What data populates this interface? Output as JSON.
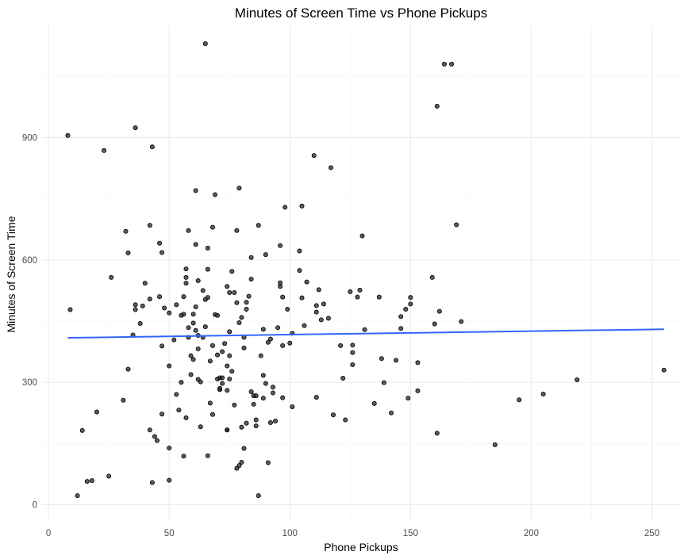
{
  "chart_data": {
    "type": "scatter",
    "title": "Minutes of Screen Time vs Phone Pickups",
    "xlabel": "Phone Pickups",
    "ylabel": "Minutes of Screen Time",
    "xlim": [
      -3,
      262
    ],
    "ylim": [
      -38,
      1175
    ],
    "x_ticks": [
      0,
      50,
      100,
      150,
      200,
      250
    ],
    "y_ticks": [
      0,
      300,
      600,
      900
    ],
    "grid": true,
    "trend_line": {
      "x": [
        8,
        255
      ],
      "y": [
        409,
        430
      ],
      "color": "#3366ff"
    },
    "point_color": "#262626",
    "points": [
      [
        8,
        905
      ],
      [
        9,
        478
      ],
      [
        12,
        22
      ],
      [
        14,
        182
      ],
      [
        16,
        57
      ],
      [
        18,
        59
      ],
      [
        20,
        227
      ],
      [
        23,
        868
      ],
      [
        25,
        70
      ],
      [
        26,
        557
      ],
      [
        31,
        256
      ],
      [
        32,
        670
      ],
      [
        33,
        332
      ],
      [
        33,
        617
      ],
      [
        35,
        416
      ],
      [
        36,
        478
      ],
      [
        36,
        490
      ],
      [
        36,
        924
      ],
      [
        38,
        444
      ],
      [
        39,
        487
      ],
      [
        40,
        543
      ],
      [
        42,
        183
      ],
      [
        42,
        504
      ],
      [
        42,
        685
      ],
      [
        43,
        877
      ],
      [
        43,
        54
      ],
      [
        44,
        167
      ],
      [
        45,
        157
      ],
      [
        46,
        510
      ],
      [
        46,
        641
      ],
      [
        47,
        618
      ],
      [
        47,
        222
      ],
      [
        47,
        389
      ],
      [
        48,
        482
      ],
      [
        50,
        340
      ],
      [
        50,
        139
      ],
      [
        50,
        60
      ],
      [
        50,
        470
      ],
      [
        52,
        404
      ],
      [
        53,
        490
      ],
      [
        53,
        270
      ],
      [
        54,
        232
      ],
      [
        55,
        464
      ],
      [
        55,
        300
      ],
      [
        56,
        467
      ],
      [
        56,
        510
      ],
      [
        56,
        119
      ],
      [
        57,
        543
      ],
      [
        57,
        557
      ],
      [
        57,
        578
      ],
      [
        57,
        213
      ],
      [
        58,
        434
      ],
      [
        58,
        410
      ],
      [
        58,
        672
      ],
      [
        59,
        365
      ],
      [
        59,
        319
      ],
      [
        60,
        445
      ],
      [
        60,
        467
      ],
      [
        60,
        356
      ],
      [
        61,
        485
      ],
      [
        61,
        638
      ],
      [
        61,
        770
      ],
      [
        61,
        427
      ],
      [
        62,
        382
      ],
      [
        62,
        549
      ],
      [
        62,
        415
      ],
      [
        62,
        307
      ],
      [
        63,
        191
      ],
      [
        63,
        301
      ],
      [
        64,
        525
      ],
      [
        64,
        410
      ],
      [
        65,
        1130
      ],
      [
        65,
        436
      ],
      [
        65,
        503
      ],
      [
        66,
        120
      ],
      [
        66,
        508
      ],
      [
        66,
        577
      ],
      [
        66,
        629
      ],
      [
        67,
        249
      ],
      [
        67,
        352
      ],
      [
        68,
        680
      ],
      [
        68,
        390
      ],
      [
        68,
        221
      ],
      [
        69,
        466
      ],
      [
        69,
        760
      ],
      [
        70,
        464
      ],
      [
        70,
        367
      ],
      [
        70,
        308
      ],
      [
        71,
        282
      ],
      [
        71,
        285
      ],
      [
        71,
        311
      ],
      [
        72,
        311
      ],
      [
        72,
        297
      ],
      [
        72,
        375
      ],
      [
        73,
        395
      ],
      [
        74,
        183
      ],
      [
        74,
        280
      ],
      [
        74,
        340
      ],
      [
        74,
        183
      ],
      [
        74,
        535
      ],
      [
        75,
        520
      ],
      [
        75,
        424
      ],
      [
        75,
        365
      ],
      [
        75,
        308
      ],
      [
        76,
        572
      ],
      [
        76,
        327
      ],
      [
        77,
        520
      ],
      [
        77,
        244
      ],
      [
        78,
        89
      ],
      [
        78,
        672
      ],
      [
        78,
        495
      ],
      [
        79,
        96
      ],
      [
        79,
        776
      ],
      [
        79,
        446
      ],
      [
        80,
        104
      ],
      [
        80,
        459
      ],
      [
        80,
        190
      ],
      [
        81,
        138
      ],
      [
        81,
        384
      ],
      [
        81,
        410
      ],
      [
        82,
        200
      ],
      [
        82,
        479
      ],
      [
        82,
        496
      ],
      [
        83,
        511
      ],
      [
        84,
        277
      ],
      [
        84,
        553
      ],
      [
        84,
        606
      ],
      [
        85,
        267
      ],
      [
        85,
        246
      ],
      [
        86,
        208
      ],
      [
        86,
        267
      ],
      [
        86,
        193
      ],
      [
        87,
        22
      ],
      [
        87,
        685
      ],
      [
        88,
        365
      ],
      [
        89,
        430
      ],
      [
        89,
        317
      ],
      [
        90,
        297
      ],
      [
        90,
        613
      ],
      [
        91,
        103
      ],
      [
        91,
        398
      ],
      [
        92,
        201
      ],
      [
        92,
        406
      ],
      [
        93,
        274
      ],
      [
        93,
        288
      ],
      [
        94,
        205
      ],
      [
        95,
        434
      ],
      [
        96,
        535
      ],
      [
        96,
        544
      ],
      [
        96,
        635
      ],
      [
        97,
        509
      ],
      [
        97,
        390
      ],
      [
        97,
        262
      ],
      [
        98,
        729
      ],
      [
        99,
        479
      ],
      [
        100,
        396
      ],
      [
        101,
        420
      ],
      [
        101,
        240
      ],
      [
        104,
        574
      ],
      [
        104,
        622
      ],
      [
        105,
        507
      ],
      [
        105,
        732
      ],
      [
        106,
        439
      ],
      [
        107,
        546
      ],
      [
        110,
        856
      ],
      [
        111,
        488
      ],
      [
        111,
        472
      ],
      [
        111,
        263
      ],
      [
        112,
        527
      ],
      [
        113,
        453
      ],
      [
        114,
        492
      ],
      [
        116,
        457
      ],
      [
        117,
        826
      ],
      [
        118,
        220
      ],
      [
        121,
        390
      ],
      [
        122,
        310
      ],
      [
        123,
        208
      ],
      [
        125,
        522
      ],
      [
        126,
        343
      ],
      [
        126,
        373
      ],
      [
        126,
        391
      ],
      [
        128,
        509
      ],
      [
        129,
        526
      ],
      [
        130,
        659
      ],
      [
        131,
        429
      ],
      [
        135,
        248
      ],
      [
        137,
        509
      ],
      [
        138,
        358
      ],
      [
        139,
        299
      ],
      [
        142,
        225
      ],
      [
        144,
        354
      ],
      [
        146,
        461
      ],
      [
        146,
        432
      ],
      [
        148,
        479
      ],
      [
        149,
        261
      ],
      [
        150,
        508
      ],
      [
        150,
        492
      ],
      [
        153,
        348
      ],
      [
        153,
        279
      ],
      [
        159,
        557
      ],
      [
        160,
        443
      ],
      [
        161,
        175
      ],
      [
        162,
        474
      ],
      [
        164,
        1080
      ],
      [
        167,
        1080
      ],
      [
        169,
        686
      ],
      [
        171,
        449
      ],
      [
        185,
        147
      ],
      [
        195,
        257
      ],
      [
        205,
        271
      ],
      [
        219,
        306
      ],
      [
        255,
        330
      ],
      [
        161,
        977
      ],
      [
        89,
        261
      ]
    ]
  }
}
